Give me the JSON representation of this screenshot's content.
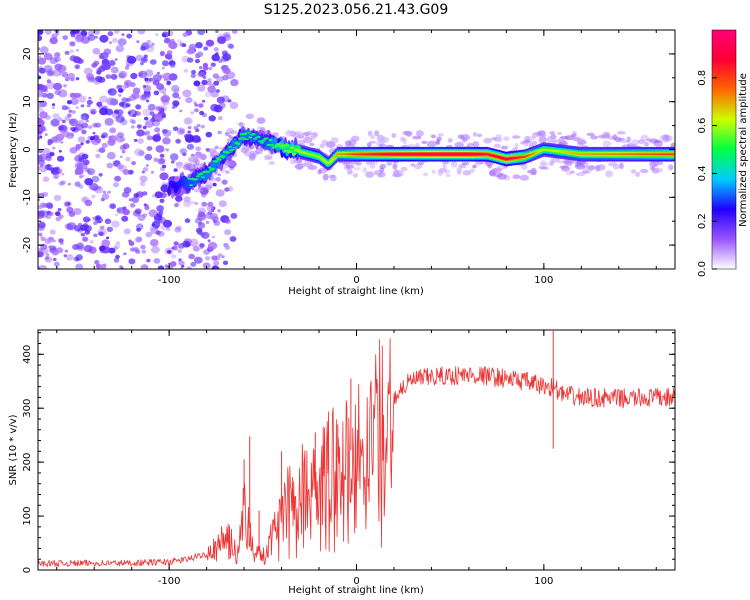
{
  "title": "S125.2023.056.21.43.G09",
  "chart_data": [
    {
      "type": "heatmap",
      "xlabel": "Height of straight line (km)",
      "ylabel": "Frequency (Hz)",
      "xlim": [
        -170,
        170
      ],
      "ylim": [
        -25,
        25
      ],
      "xticks": [
        -100,
        0,
        100
      ],
      "yticks": [
        -20,
        -10,
        0,
        10,
        20
      ],
      "colorbar": {
        "label": "Normalized spectral amplitude",
        "range": [
          0,
          1
        ],
        "ticks": [
          0.0,
          0.2,
          0.4,
          0.6,
          0.8
        ],
        "colors": [
          "#ffffff",
          "#9955ff",
          "#2200ff",
          "#00ccff",
          "#00ff44",
          "#ccff00",
          "#ff6600",
          "#ff0033",
          "#ff0077"
        ]
      },
      "ridge": {
        "x": [
          -100,
          -90,
          -80,
          -70,
          -60,
          -50,
          -40,
          -30,
          -20,
          -15,
          -10,
          0,
          20,
          40,
          60,
          70,
          80,
          90,
          100,
          120,
          170
        ],
        "y": [
          -8,
          -7,
          -5,
          -1,
          3,
          2,
          0.5,
          -0.5,
          -1.5,
          -3,
          -1,
          -1,
          -1,
          -1,
          -1,
          -1,
          -2,
          -1.5,
          0,
          -1,
          -1
        ],
        "amplitude": [
          0.35,
          0.45,
          0.5,
          0.5,
          0.5,
          0.45,
          0.55,
          0.6,
          0.6,
          0.6,
          0.7,
          0.8,
          0.9,
          0.95,
          0.95,
          0.85,
          0.9,
          0.8,
          0.6,
          0.7,
          0.8
        ]
      }
    },
    {
      "type": "line",
      "xlabel": "Height of straight line (km)",
      "ylabel": "SNR (10 * v/v)",
      "xlim": [
        -170,
        170
      ],
      "ylim": [
        0,
        445
      ],
      "xticks": [
        -100,
        0,
        100
      ],
      "yticks": [
        0,
        100,
        200,
        300,
        400
      ],
      "color": "#ee3333",
      "envelope": {
        "x": [
          -170,
          -120,
          -100,
          -90,
          -80,
          -70,
          -65,
          -60,
          -55,
          -50,
          -45,
          -40,
          -35,
          -30,
          -25,
          -20,
          -15,
          -10,
          -5,
          0,
          5,
          10,
          15,
          20,
          25,
          30,
          40,
          60,
          70,
          80,
          90,
          100,
          105,
          110,
          120,
          140,
          170
        ],
        "y": [
          12,
          13,
          15,
          20,
          30,
          60,
          45,
          120,
          50,
          25,
          60,
          110,
          130,
          150,
          160,
          175,
          190,
          210,
          220,
          225,
          245,
          265,
          290,
          320,
          340,
          352,
          358,
          362,
          360,
          355,
          350,
          340,
          340,
          325,
          320,
          318,
          320
        ]
      },
      "spikes": [
        {
          "x": -60,
          "y": 205
        },
        {
          "x": -57,
          "y": 248
        },
        {
          "x": -52,
          "y": 110
        },
        {
          "x": -40,
          "y": 220
        },
        {
          "x": -22,
          "y": 255
        },
        {
          "x": -10,
          "y": 270
        },
        {
          "x": -3,
          "y": 355
        },
        {
          "x": 105,
          "y": 445
        },
        {
          "x": 105,
          "y": 225
        }
      ]
    }
  ]
}
